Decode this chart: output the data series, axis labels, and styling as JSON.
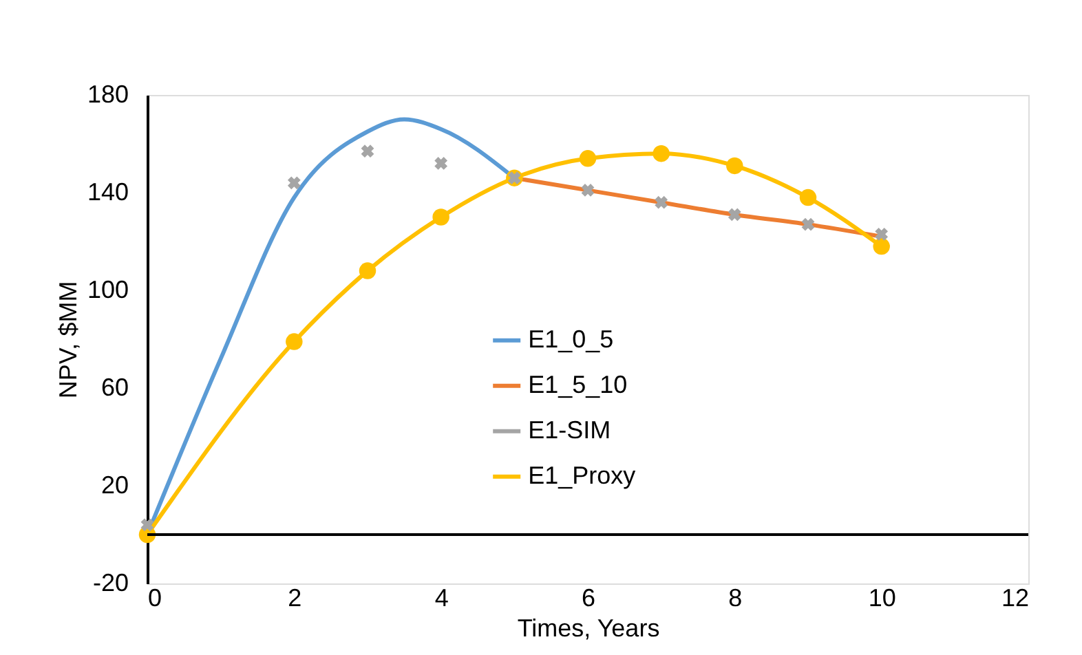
{
  "chart_data": {
    "type": "line",
    "xlabel": "Times, Years",
    "ylabel": "NPV, $MM",
    "xlim": [
      0,
      12
    ],
    "xticks": [
      0,
      2,
      4,
      6,
      8,
      10,
      12
    ],
    "ylim": [
      -20,
      180
    ],
    "yticks": [
      -20,
      20,
      60,
      100,
      140,
      180
    ],
    "grid": false,
    "legend": "center",
    "line_style": "solid",
    "ref_lines": [
      {
        "axis": "y",
        "value": 0,
        "color": "#000000"
      }
    ],
    "series": [
      {
        "name": "E1_0_5",
        "color": "#5b9bd5",
        "type": "line",
        "marker": "none",
        "x": [
          0,
          1,
          2,
          3,
          3.5,
          4,
          5
        ],
        "values": [
          0,
          72,
          138,
          165,
          170,
          166,
          146
        ]
      },
      {
        "name": "E1_5_10",
        "color": "#ed7d31",
        "type": "line",
        "marker": "none",
        "x": [
          5,
          6,
          7,
          8,
          9,
          10
        ],
        "values": [
          146,
          141,
          136,
          131,
          127,
          122
        ]
      },
      {
        "name": "E1-SIM",
        "color": "#a5a5a5",
        "type": "scatter",
        "marker": "cross",
        "x": [
          0,
          2,
          3,
          4,
          5,
          6,
          7,
          8,
          9,
          10
        ],
        "values": [
          4,
          144,
          157,
          152,
          146,
          141,
          136,
          131,
          127,
          123
        ]
      },
      {
        "name": "E1_Proxy",
        "color": "#ffc000",
        "type": "line",
        "marker": "circle",
        "x": [
          0,
          2,
          3,
          4,
          5,
          6,
          7,
          8,
          9,
          10
        ],
        "values": [
          0,
          79,
          108,
          130,
          146,
          154,
          156,
          151,
          138,
          118
        ]
      }
    ]
  }
}
